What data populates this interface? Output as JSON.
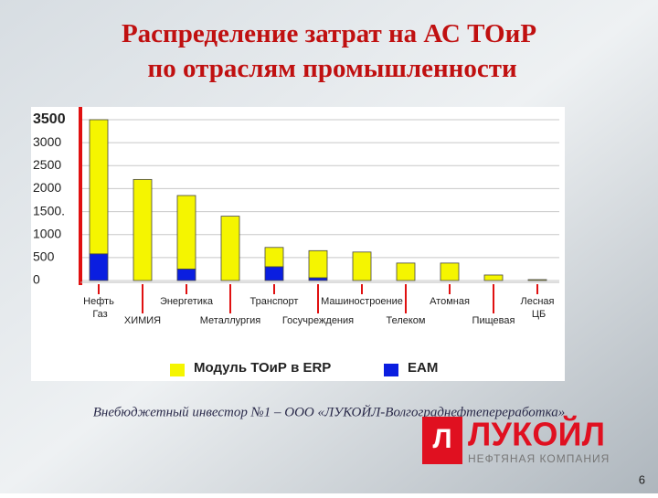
{
  "title": "Распределение затрат на АС ТОиР по отраслям промышленности",
  "chart_data": {
    "type": "bar",
    "stacked": true,
    "categories": [
      "Нефть Газ",
      "ХИМИЯ",
      "Энергетика",
      "Металлургия",
      "Транспорт",
      "Госучреждения",
      "Машиностроение",
      "Телеком",
      "Атомная",
      "Пищевая",
      "Лесная ЦБ"
    ],
    "series": [
      {
        "name": "EAM",
        "color": "#0a1ee0",
        "values": [
          580,
          0,
          250,
          0,
          300,
          60,
          0,
          0,
          0,
          0,
          0
        ]
      },
      {
        "name": "Модуль ТОиР в ERP",
        "color": "#f5f500",
        "values": [
          2920,
          2200,
          1600,
          1400,
          420,
          590,
          620,
          380,
          380,
          120,
          20
        ]
      }
    ],
    "ylim": [
      0,
      3500
    ],
    "yticks": [
      0,
      500,
      1000,
      {
        "value": 1500,
        "label": "1500."
      },
      2000,
      2500,
      3000,
      3500
    ],
    "grid": true
  },
  "footer": "Внебюджетный инвестор №1 – ООО «ЛУКОЙЛ-Волгограднефтепереработка»",
  "logo": {
    "name": "ЛУКОЙЛ",
    "subtitle": "НЕФТЯНАЯ КОМПАНИЯ"
  },
  "page_number": "6"
}
